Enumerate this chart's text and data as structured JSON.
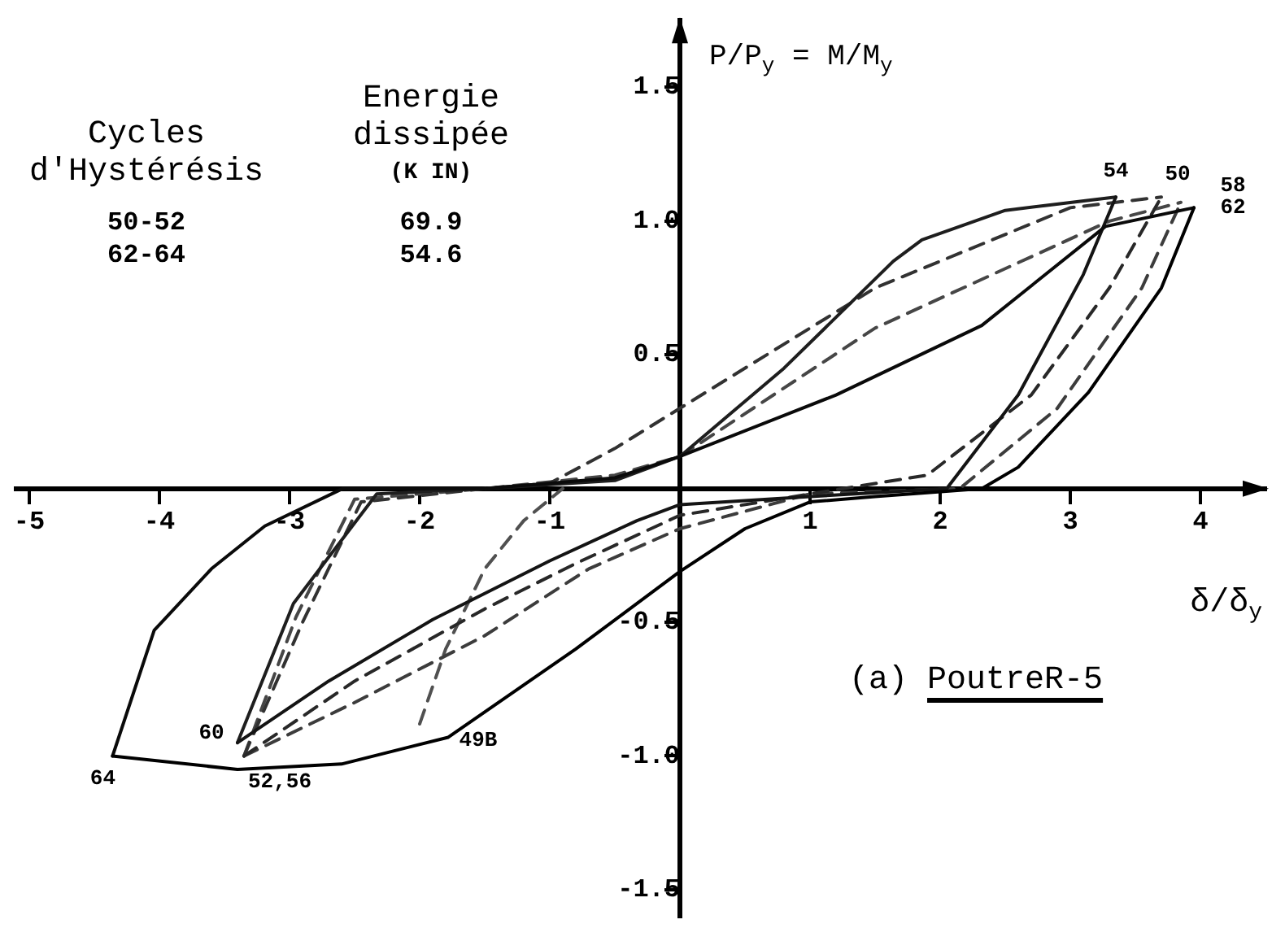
{
  "chart_data": {
    "type": "line",
    "title": "(a) PoutreR-5",
    "xlabel": "δ/δ$_{y}$",
    "ylabel": "P/P$_{y}$ = M/M$_{y}$",
    "xlim": [
      -5.1,
      4.5
    ],
    "ylim": [
      -1.6,
      1.75
    ],
    "xticks": [
      -5,
      -4,
      -3,
      -2,
      -1,
      1,
      2,
      3,
      4
    ],
    "yticks": [
      {
        "value": -1.5,
        "label": "-1.5"
      },
      {
        "value": -1,
        "label": "-1.0"
      },
      {
        "value": -0.5,
        "label": "-0.5"
      },
      {
        "value": 0.5,
        "label": "0.5"
      },
      {
        "value": 1,
        "label": "1.0"
      },
      {
        "value": 1.5,
        "label": "1.5"
      }
    ],
    "grid": false,
    "legend": false,
    "marker": "none",
    "series": [
      {
        "color": "#000000",
        "line_style": "solid",
        "x": [
          -4.36,
          -3.4,
          -2.6,
          -1.78,
          -0.8,
          0,
          0.5,
          1.0,
          1.5,
          2.32,
          2.6,
          3.14,
          3.7,
          3.95
        ],
        "values": [
          -1.0,
          -1.05,
          -1.03,
          -0.93,
          -0.6,
          -0.31,
          -0.15,
          -0.05,
          -0.03,
          0,
          0.08,
          0.36,
          0.75,
          1.05
        ]
      },
      {
        "color": "#0a0a0a",
        "line_style": "solid",
        "x": [
          -4.36,
          -4.04,
          -3.6,
          -3.19,
          -2.59,
          -1.5,
          -0.5,
          0,
          1.2,
          2.32,
          3.27,
          3.95
        ],
        "values": [
          -1.0,
          -0.53,
          -0.3,
          -0.14,
          0,
          0,
          0.04,
          0.12,
          0.35,
          0.61,
          0.98,
          1.05
        ]
      },
      {
        "color": "#141414",
        "line_style": "solid",
        "x": [
          -3.4,
          -2.7,
          -1.9,
          -1.0,
          -0.33,
          0,
          1.0,
          2.05,
          2.6,
          3.1,
          3.35
        ],
        "values": [
          -0.95,
          -0.72,
          -0.49,
          -0.27,
          -0.12,
          -0.06,
          -0.03,
          0,
          0.35,
          0.8,
          1.09
        ]
      },
      {
        "color": "#1e1e1e",
        "line_style": "solid",
        "x": [
          -3.4,
          -2.97,
          -2.33,
          -1.5,
          -0.5,
          0,
          0.8,
          1.64,
          1.86,
          2.5,
          3.35
        ],
        "values": [
          -0.95,
          -0.43,
          -0.02,
          0,
          0.03,
          0.12,
          0.45,
          0.85,
          0.93,
          1.04,
          1.09
        ]
      },
      {
        "color": "#282828",
        "line_style": "dashed",
        "x": [
          -3.35,
          -2.5,
          -1.5,
          -0.8,
          0,
          1.0,
          1.9,
          2.7,
          3.3,
          3.7
        ],
        "values": [
          -1.0,
          -0.72,
          -0.45,
          -0.28,
          -0.1,
          -0.02,
          0.05,
          0.35,
          0.75,
          1.09
        ]
      },
      {
        "color": "#323232",
        "line_style": "dashed",
        "x": [
          -3.35,
          -2.9,
          -2.45,
          -1.5,
          -1.0,
          -0.5,
          0,
          1.5,
          3.0,
          3.7
        ],
        "values": [
          -1.0,
          -0.5,
          -0.05,
          0,
          0.02,
          0.15,
          0.3,
          0.75,
          1.05,
          1.09
        ]
      },
      {
        "color": "#3c3c3c",
        "line_style": "dashed",
        "x": [
          -3.35,
          -2.5,
          -1.5,
          -0.7,
          0,
          1.0,
          2.15,
          2.9,
          3.55,
          3.85
        ],
        "values": [
          -1.0,
          -0.8,
          -0.55,
          -0.3,
          -0.15,
          -0.02,
          0,
          0.3,
          0.75,
          1.07
        ]
      },
      {
        "color": "#464646",
        "line_style": "dashed",
        "x": [
          -3.35,
          -2.95,
          -2.5,
          -1.5,
          -0.5,
          0,
          1.5,
          3.3,
          3.85
        ],
        "values": [
          -1.0,
          -0.48,
          -0.04,
          0,
          0.05,
          0.12,
          0.6,
          1.0,
          1.07
        ]
      },
      {
        "color": "#505050",
        "line_style": "dashed",
        "x": [
          -2.0,
          -1.8,
          -1.5,
          -1.2,
          -0.9
        ],
        "values": [
          -0.88,
          -0.6,
          -0.3,
          -0.12,
          0.0
        ]
      }
    ],
    "annotations": [
      "Cycles d'Hystérésis",
      "Energie dissipée (K IN)",
      "50-52",
      "69.9",
      "62-64",
      "54.6",
      {
        "text": "54",
        "x": 3.35,
        "y": 1.09
      },
      {
        "text": "50",
        "x": 3.7,
        "y": 1.09
      },
      {
        "text": "58",
        "x": 3.85,
        "y": 1.07
      },
      {
        "text": "62",
        "x": 3.95,
        "y": 1.05
      },
      {
        "text": "64",
        "x": -4.36,
        "y": -1.0
      },
      {
        "text": "60",
        "x": -3.4,
        "y": -0.95
      },
      {
        "text": "52,56",
        "x": -3.35,
        "y": -1.0
      },
      {
        "text": "49B",
        "x": -2.0,
        "y": -0.88
      }
    ]
  }
}
